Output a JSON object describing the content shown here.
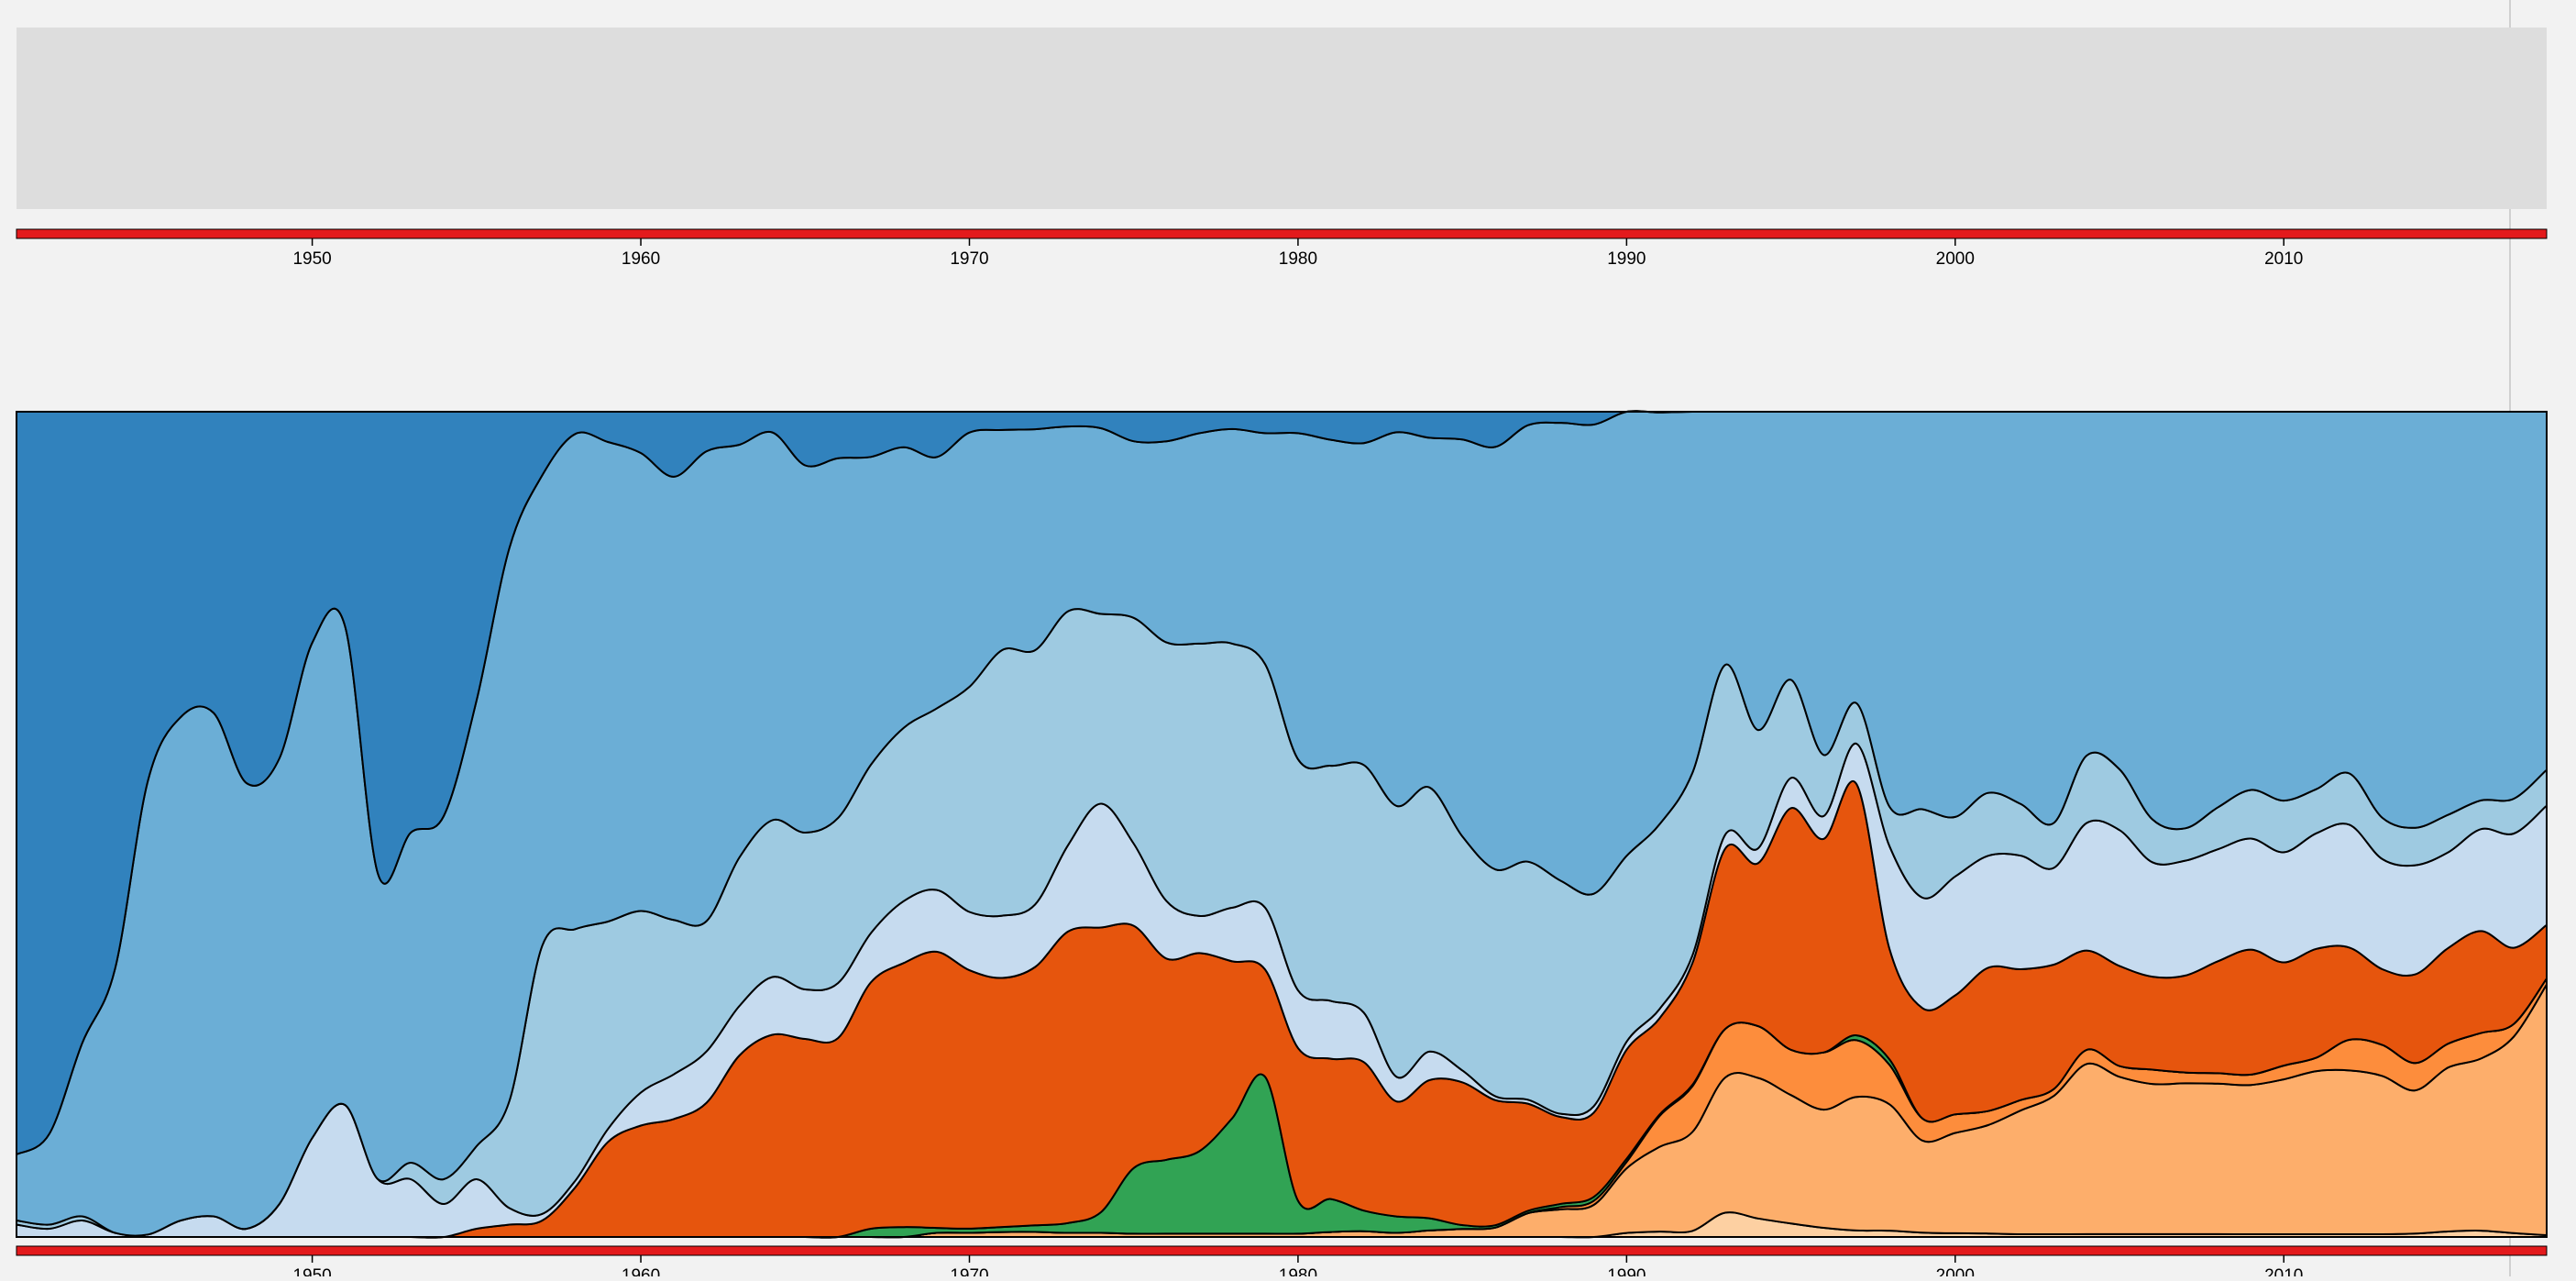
{
  "colors": {
    "background": "#f2f2f2",
    "overview_panel": "#dddddd",
    "brush_bar": "#e31a1c",
    "divider": "#d0d0d0",
    "outline": "#000000"
  },
  "chart_data": {
    "type": "area",
    "stacking": "expand",
    "title": "",
    "xlabel": "",
    "ylabel": "",
    "xlim": [
      1941,
      2018
    ],
    "ylim": [
      0,
      1
    ],
    "x_ticks": [
      "1950",
      "1960",
      "1970",
      "1980",
      "1990",
      "2000",
      "2010"
    ],
    "x": [
      1941,
      1942,
      1943,
      1944,
      1945,
      1946,
      1947,
      1948,
      1949,
      1950,
      1951,
      1952,
      1953,
      1954,
      1955,
      1956,
      1957,
      1958,
      1959,
      1960,
      1961,
      1962,
      1963,
      1964,
      1965,
      1966,
      1967,
      1968,
      1969,
      1970,
      1971,
      1972,
      1973,
      1974,
      1975,
      1976,
      1977,
      1978,
      1979,
      1980,
      1981,
      1982,
      1983,
      1984,
      1985,
      1986,
      1987,
      1988,
      1989,
      1990,
      1991,
      1992,
      1993,
      1994,
      1995,
      1996,
      1997,
      1998,
      1999,
      2000,
      2001,
      2002,
      2003,
      2004,
      2005,
      2006,
      2007,
      2008,
      2009,
      2010,
      2011,
      2012,
      2013,
      2014,
      2015,
      2016,
      2017,
      2018
    ],
    "series": [
      {
        "color": "#fdd0a2",
        "values": [
          0,
          0,
          0,
          0,
          0,
          0,
          0,
          0,
          0,
          0,
          0,
          0,
          0,
          0,
          0,
          0,
          0,
          0,
          0,
          0,
          0,
          0,
          0,
          0,
          0,
          0,
          0,
          0,
          0,
          0,
          0,
          0,
          0,
          0,
          0,
          0,
          0,
          0,
          0,
          0,
          0,
          0,
          0,
          0,
          0,
          0,
          0,
          0,
          0,
          0.005,
          0.007,
          0.008,
          0.035,
          0.025,
          0.018,
          0.012,
          0.008,
          0.008,
          0.006,
          0.005,
          0.005,
          0.004,
          0.004,
          0.004,
          0.004,
          0.004,
          0.004,
          0.004,
          0.004,
          0.004,
          0.004,
          0.004,
          0.004,
          0.005,
          0.008,
          0.01,
          0.006,
          0.003
        ]
      },
      {
        "color": "#fdae6b",
        "values": [
          0,
          0,
          0,
          0,
          0,
          0,
          0,
          0,
          0,
          0,
          0,
          0,
          0,
          0,
          0,
          0,
          0,
          0,
          0,
          0,
          0,
          0,
          0,
          0,
          0,
          0,
          0,
          0,
          0.005,
          0.005,
          0.006,
          0.006,
          0.005,
          0.005,
          0.004,
          0.004,
          0.004,
          0.004,
          0.004,
          0.004,
          0.006,
          0.007,
          0.005,
          0.008,
          0.01,
          0.012,
          0.03,
          0.035,
          0.04,
          0.08,
          0.11,
          0.13,
          0.195,
          0.19,
          0.17,
          0.155,
          0.165,
          0.16,
          0.125,
          0.135,
          0.155,
          0.18,
          0.2,
          0.24,
          0.22,
          0.21,
          0.21,
          0.215,
          0.215,
          0.225,
          0.24,
          0.24,
          0.23,
          0.21,
          0.24,
          0.27,
          0.31,
          0.42
        ]
      },
      {
        "color": "#fd8d3c",
        "values": [
          0,
          0,
          0,
          0,
          0,
          0,
          0,
          0,
          0,
          0,
          0,
          0,
          0,
          0,
          0,
          0,
          0,
          0,
          0,
          0,
          0,
          0,
          0,
          0,
          0,
          0,
          0,
          0,
          0,
          0,
          0,
          0,
          0,
          0,
          0,
          0,
          0,
          0,
          0,
          0,
          0,
          0,
          0,
          0,
          0,
          0,
          0,
          0.003,
          0.005,
          0.008,
          0.04,
          0.06,
          0.07,
          0.07,
          0.06,
          0.075,
          0.07,
          0.05,
          0.03,
          0.025,
          0.02,
          0.015,
          0.01,
          0.02,
          0.015,
          0.02,
          0.015,
          0.015,
          0.015,
          0.02,
          0.02,
          0.045,
          0.045,
          0.04,
          0.035,
          0.04,
          0.02,
          0.01
        ]
      },
      {
        "color": "#31a354",
        "values": [
          0,
          0,
          0,
          0,
          0,
          0,
          0,
          0,
          0,
          0,
          0,
          0,
          0,
          0,
          0,
          0,
          0,
          0,
          0,
          0,
          0,
          0,
          0,
          0,
          0,
          0,
          0.01,
          0.012,
          0.006,
          0.005,
          0.006,
          0.008,
          0.012,
          0.025,
          0.08,
          0.09,
          0.1,
          0.14,
          0.19,
          0.04,
          0.04,
          0.025,
          0.02,
          0.015,
          0.005,
          0.003,
          0.003,
          0.004,
          0.005,
          0.004,
          0.002,
          0.002,
          0,
          0,
          0,
          0,
          0.006,
          0.007,
          0,
          0,
          0,
          0,
          0,
          0,
          0,
          0,
          0,
          0,
          0,
          0,
          0,
          0,
          0,
          0,
          0,
          0,
          0,
          0
        ]
      },
      {
        "color": "#e6550d",
        "values": [
          0,
          0,
          0,
          0,
          0,
          0,
          0,
          0,
          0,
          0,
          0,
          0,
          0,
          0,
          0.01,
          0.015,
          0.02,
          0.06,
          0.11,
          0.135,
          0.145,
          0.17,
          0.22,
          0.245,
          0.24,
          0.235,
          0.3,
          0.32,
          0.335,
          0.31,
          0.3,
          0.31,
          0.355,
          0.345,
          0.295,
          0.245,
          0.24,
          0.19,
          0.13,
          0.185,
          0.17,
          0.18,
          0.14,
          0.17,
          0.18,
          0.16,
          0.135,
          0.11,
          0.105,
          0.135,
          0.125,
          0.16,
          0.26,
          0.22,
          0.32,
          0.28,
          0.31,
          0.14,
          0.15,
          0.16,
          0.205,
          0.19,
          0.18,
          0.14,
          0.14,
          0.13,
          0.135,
          0.16,
          0.18,
          0.15,
          0.16,
          0.135,
          0.11,
          0.13,
          0.14,
          0.16,
          0.12,
          0.09
        ]
      },
      {
        "color": "#c6dbef",
        "values": [
          0.015,
          0.01,
          0.02,
          0.005,
          0.003,
          0.02,
          0.025,
          0.01,
          0.04,
          0.12,
          0.16,
          0.07,
          0.07,
          0.04,
          0.06,
          0.02,
          0.008,
          0.008,
          0.015,
          0.04,
          0.055,
          0.065,
          0.06,
          0.07,
          0.06,
          0.065,
          0.06,
          0.075,
          0.075,
          0.07,
          0.075,
          0.075,
          0.105,
          0.15,
          0.1,
          0.07,
          0.045,
          0.065,
          0.075,
          0.07,
          0.07,
          0.06,
          0.03,
          0.035,
          0.015,
          0.005,
          0.005,
          0.004,
          0.008,
          0.01,
          0.012,
          0.01,
          0.02,
          0.02,
          0.04,
          0.03,
          0.05,
          0.13,
          0.15,
          0.16,
          0.16,
          0.165,
          0.14,
          0.18,
          0.19,
          0.16,
          0.16,
          0.16,
          0.16,
          0.16,
          0.17,
          0.18,
          0.16,
          0.16,
          0.14,
          0.16,
          0.18,
          0.2
        ]
      },
      {
        "color": "#9ecae1",
        "values": [
          0.005,
          0.005,
          0.005,
          0,
          0,
          0,
          0,
          0,
          0,
          0,
          0,
          0,
          0.02,
          0.03,
          0.04,
          0.13,
          0.325,
          0.305,
          0.24,
          0.22,
          0.19,
          0.165,
          0.18,
          0.19,
          0.19,
          0.195,
          0.205,
          0.21,
          0.22,
          0.27,
          0.32,
          0.305,
          0.285,
          0.23,
          0.275,
          0.315,
          0.33,
          0.32,
          0.295,
          0.28,
          0.285,
          0.3,
          0.33,
          0.325,
          0.295,
          0.29,
          0.3,
          0.295,
          0.265,
          0.23,
          0.24,
          0.24,
          0.245,
          0.16,
          0.13,
          0.08,
          0.05,
          0.05,
          0.12,
          0.08,
          0.09,
          0.075,
          0.065,
          0.095,
          0.085,
          0.06,
          0.045,
          0.06,
          0.07,
          0.075,
          0.065,
          0.075,
          0.06,
          0.055,
          0.055,
          0.045,
          0.055,
          0.06
        ]
      },
      {
        "color": "#6baed6",
        "values": [
          0.08,
          0.11,
          0.21,
          0.32,
          0.55,
          0.61,
          0.61,
          0.54,
          0.54,
          0.6,
          0.58,
          0.37,
          0.4,
          0.44,
          0.54,
          0.67,
          0.57,
          0.6,
          0.555,
          0.555,
          0.545,
          0.595,
          0.5,
          0.47,
          0.445,
          0.425,
          0.375,
          0.34,
          0.305,
          0.305,
          0.265,
          0.265,
          0.225,
          0.225,
          0.215,
          0.245,
          0.255,
          0.26,
          0.28,
          0.395,
          0.395,
          0.39,
          0.455,
          0.43,
          0.5,
          0.54,
          0.55,
          0.58,
          0.585,
          0.55,
          0.535,
          0.475,
          0.365,
          0.43,
          0.355,
          0.45,
          0.36,
          0.5,
          0.54,
          0.545,
          0.545,
          0.57,
          0.595,
          0.485,
          0.5,
          0.57,
          0.58,
          0.565,
          0.545,
          0.565,
          0.555,
          0.53,
          0.59,
          0.61,
          0.59,
          0.61,
          0.61,
          0.6
        ]
      },
      {
        "color": "#3182bd",
        "values": [
          0.9,
          0.875,
          0.765,
          0.675,
          0.447,
          0.37,
          0.365,
          0.45,
          0.42,
          0.28,
          0.26,
          0.56,
          0.51,
          0.49,
          0.35,
          0.165,
          0.077,
          0.027,
          0.035,
          0.05,
          0.08,
          0.05,
          0.04,
          0.025,
          0.065,
          0.055,
          0.055,
          0.043,
          0.055,
          0.025,
          0.022,
          0.021,
          0.018,
          0.02,
          0.036,
          0.036,
          0.026,
          0.021,
          0.026,
          0.026,
          0.034,
          0.038,
          0.025,
          0.032,
          0.035,
          0.045,
          0.017,
          0.014,
          0.016,
          0.0,
          0.001,
          0.0,
          0.0,
          0.0,
          0.0,
          0.0,
          0.0,
          0.0,
          0.0,
          0.0,
          0.0,
          0.0,
          0.0,
          0.0,
          0.0,
          0.0,
          0.0,
          0.0,
          0.0,
          0.0,
          0.0,
          0.0,
          0.0,
          0.0,
          0.0,
          0.0,
          0.0,
          0.0
        ]
      }
    ]
  }
}
